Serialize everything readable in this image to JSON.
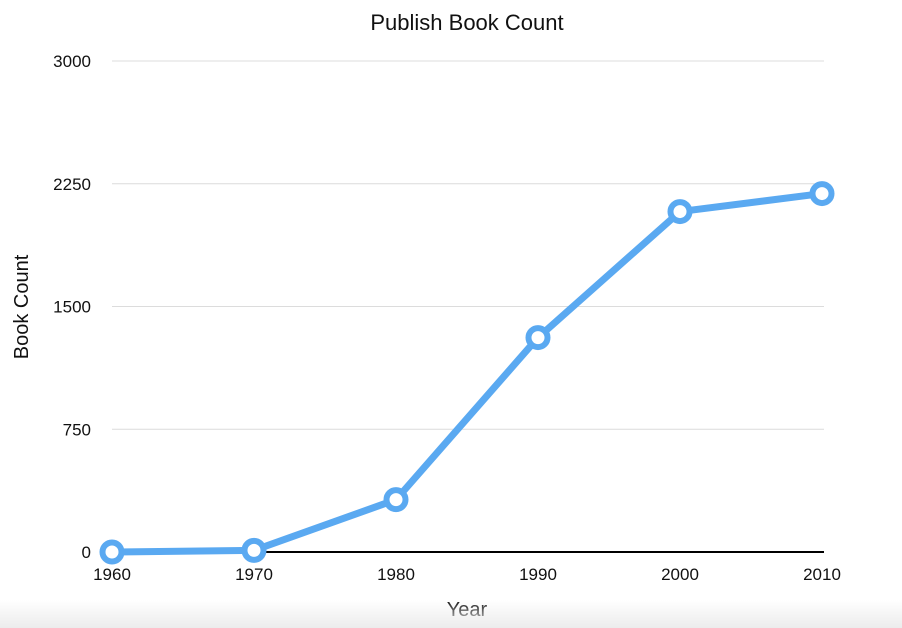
{
  "chart_data": {
    "type": "line",
    "title": "Publish Book Count",
    "xlabel": "Year",
    "ylabel": "Book Count",
    "x": [
      1960,
      1970,
      1980,
      1990,
      2000,
      2010
    ],
    "series": [
      {
        "values": [
          0,
          10,
          320,
          1310,
          2080,
          2190
        ],
        "color": "#5aa9f1"
      }
    ],
    "xticks": [
      "1960",
      "1970",
      "1980",
      "1990",
      "2000",
      "2010"
    ],
    "yticks": [
      "0",
      "750",
      "1500",
      "2250",
      "3000"
    ],
    "ylim": [
      0,
      3000
    ],
    "xlim": [
      1960,
      2010
    ],
    "grid": true,
    "legend": "none"
  }
}
